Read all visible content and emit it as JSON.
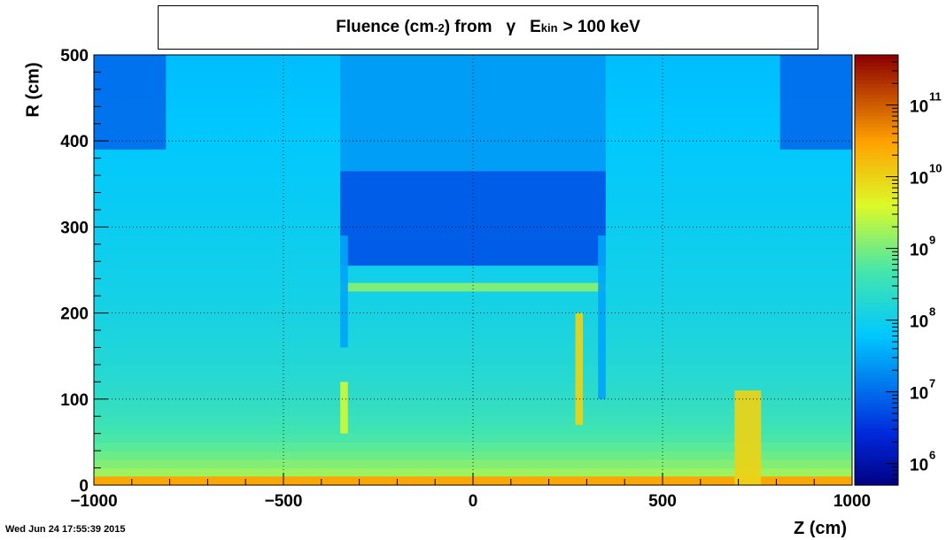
{
  "title": {
    "prefix": "Fluence (cm",
    "exponent": "-2",
    "mid": ") from",
    "particle": "γ",
    "energy_symbol": "E",
    "energy_subscript": "kin",
    "suffix": "> 100 keV"
  },
  "timestamp": "Wed Jun 24 17:55:39 2015",
  "chart_data": {
    "type": "heatmap",
    "xlabel": "Z (cm)",
    "ylabel": "R (cm)",
    "xlim": [
      -1000,
      1000
    ],
    "ylim": [
      0,
      500
    ],
    "x_ticks": [
      -1000,
      -500,
      0,
      500,
      1000
    ],
    "x_tick_labels": [
      "−1000",
      "−500",
      "0",
      "500",
      "1000"
    ],
    "y_ticks": [
      0,
      100,
      200,
      300,
      400,
      500
    ],
    "y_tick_labels": [
      "0",
      "100",
      "200",
      "300",
      "400",
      "500"
    ],
    "grid": true,
    "z_scale": "log",
    "zlim": [
      500000.0,
      500000000000.0
    ],
    "colorbar": {
      "base": "10",
      "exponents": [
        "6",
        "7",
        "8",
        "9",
        "10",
        "11"
      ],
      "values": [
        1000000.0,
        10000000.0,
        100000000.0,
        1000000000.0,
        10000000000.0,
        100000000000.0
      ]
    },
    "regions": [
      {
        "z": [
          -1000,
          1000
        ],
        "r": [
          0,
          500
        ],
        "log10_fluence": 8.3,
        "note": "general field, decreasing with R"
      },
      {
        "z": [
          -350,
          350
        ],
        "r": [
          255,
          365
        ],
        "log10_fluence": 6.8
      },
      {
        "z": [
          -350,
          350
        ],
        "r": [
          365,
          500
        ],
        "log10_fluence": 7.4
      },
      {
        "z": [
          -350,
          350
        ],
        "r": [
          225,
          235
        ],
        "log10_fluence": 9.1
      },
      {
        "z": [
          -1000,
          -810
        ],
        "r": [
          390,
          500
        ],
        "log10_fluence": 7.0
      },
      {
        "z": [
          810,
          1000
        ],
        "r": [
          390,
          500
        ],
        "log10_fluence": 7.0
      },
      {
        "z": [
          -350,
          -330
        ],
        "r": [
          160,
          290
        ],
        "log10_fluence": 7.5
      },
      {
        "z": [
          330,
          350
        ],
        "r": [
          100,
          290
        ],
        "log10_fluence": 7.5
      },
      {
        "z": [
          -1000,
          1000
        ],
        "r": [
          0,
          10
        ],
        "log10_fluence": 10.5
      },
      {
        "z": [
          690,
          760
        ],
        "r": [
          0,
          110
        ],
        "log10_fluence": 10.0
      },
      {
        "z": [
          270,
          290
        ],
        "r": [
          70,
          200
        ],
        "log10_fluence": 10.0
      },
      {
        "z": [
          -350,
          -330
        ],
        "r": [
          60,
          120
        ],
        "log10_fluence": 9.5
      }
    ]
  }
}
